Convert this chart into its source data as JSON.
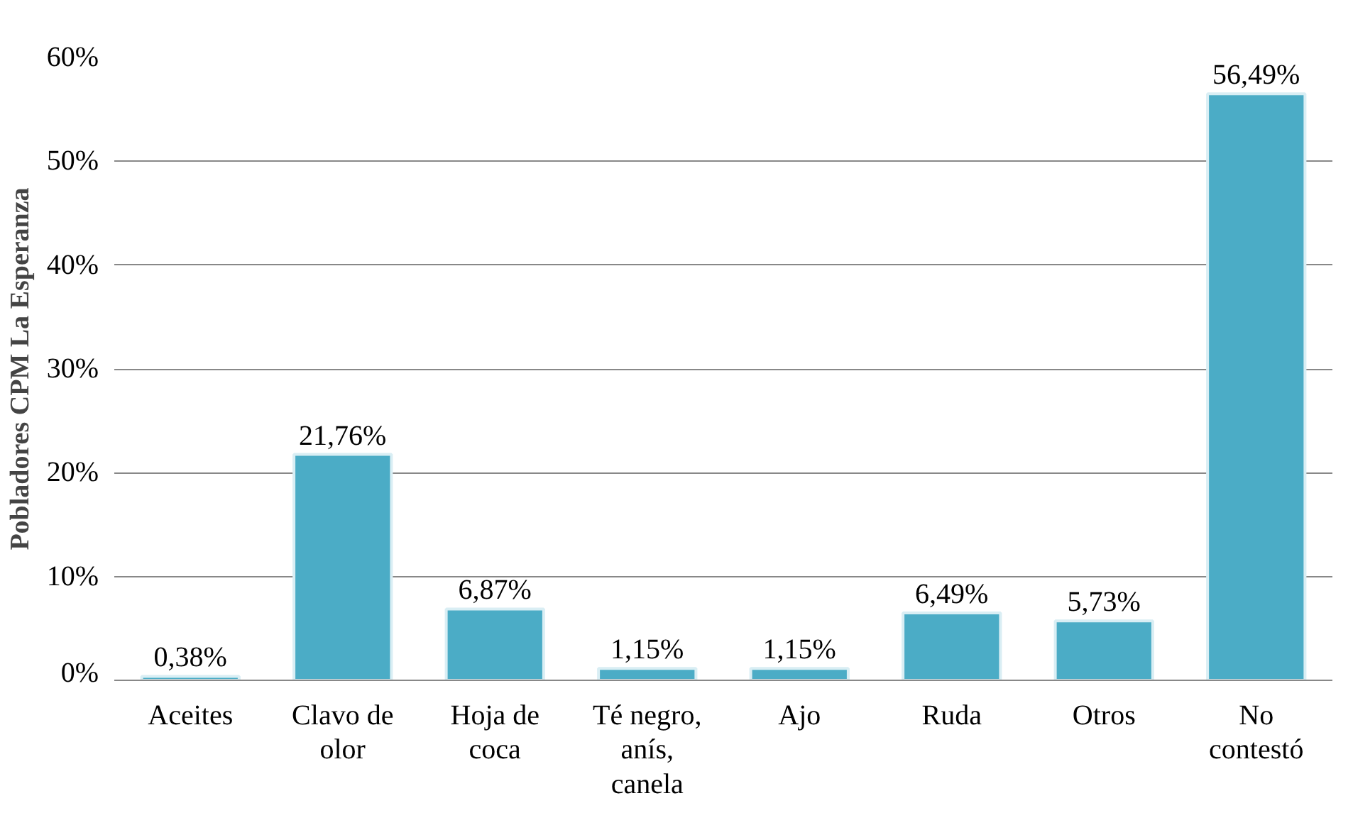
{
  "chart_data": {
    "type": "bar",
    "ylabel": "Pobladores CPM La Esperanza",
    "categories": [
      "Aceites",
      "Clavo de olor",
      "Hoja de coca",
      "Té negro, anís, canela",
      "Ajo",
      "Ruda",
      "Otros",
      "No contestó"
    ],
    "values": [
      0.38,
      21.76,
      6.87,
      1.15,
      1.15,
      6.49,
      5.73,
      56.49
    ],
    "value_labels": [
      "0,38%",
      "21,76%",
      "6,87%",
      "1,15%",
      "1,15%",
      "6,49%",
      "5,73%",
      "56,49%"
    ],
    "color": "#4bacc6",
    "ylim": [
      0,
      60
    ],
    "yticks": [
      {
        "value": 0,
        "label": "0%"
      },
      {
        "value": 10,
        "label": "10%"
      },
      {
        "value": 20,
        "label": "20%"
      },
      {
        "value": 30,
        "label": "30%"
      },
      {
        "value": 40,
        "label": "40%"
      },
      {
        "value": 50,
        "label": "50%"
      },
      {
        "value": 60,
        "label": "60%"
      }
    ],
    "grid": "y"
  }
}
